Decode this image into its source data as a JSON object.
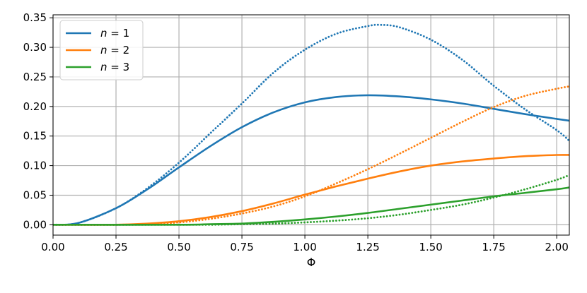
{
  "chart_data": {
    "type": "line",
    "title": "",
    "xlabel": "Φ",
    "ylabel": "",
    "xlim": [
      0.0,
      2.05
    ],
    "ylim": [
      -0.0175,
      0.355
    ],
    "grid": true,
    "legend_placement": "top-left",
    "x_ticks": [
      0.0,
      0.25,
      0.5,
      0.75,
      1.0,
      1.25,
      1.5,
      1.75,
      2.0
    ],
    "x_tick_labels": [
      "0.00",
      "0.25",
      "0.50",
      "0.75",
      "1.00",
      "1.25",
      "1.50",
      "1.75",
      "2.00"
    ],
    "y_ticks": [
      0.0,
      0.05,
      0.1,
      0.15,
      0.2,
      0.25,
      0.3,
      0.35
    ],
    "y_tick_labels": [
      "0.00",
      "0.05",
      "0.10",
      "0.15",
      "0.20",
      "0.25",
      "0.30",
      "0.35"
    ],
    "series": [
      {
        "name": "n = 1",
        "legend_n": "1",
        "color": "#1f77b4",
        "style": "solid",
        "x": [
          0.0,
          0.1,
          0.25,
          0.375,
          0.5,
          0.625,
          0.75,
          0.875,
          1.0,
          1.125,
          1.25,
          1.375,
          1.5,
          1.625,
          1.75,
          1.875,
          2.0,
          2.05
        ],
        "y": [
          0.0,
          0.003,
          0.028,
          0.06,
          0.097,
          0.133,
          0.165,
          0.19,
          0.207,
          0.216,
          0.219,
          0.217,
          0.212,
          0.205,
          0.196,
          0.187,
          0.179,
          0.176
        ]
      },
      {
        "name": "n = 1 (dotted)",
        "color": "#1f77b4",
        "style": "dotted",
        "x": [
          0.0,
          0.1,
          0.25,
          0.375,
          0.5,
          0.625,
          0.75,
          0.875,
          1.0,
          1.125,
          1.25,
          1.3,
          1.375,
          1.5,
          1.625,
          1.75,
          1.875,
          2.0,
          2.05
        ],
        "y": [
          0.0,
          0.003,
          0.028,
          0.062,
          0.105,
          0.155,
          0.205,
          0.257,
          0.296,
          0.323,
          0.336,
          0.338,
          0.334,
          0.313,
          0.279,
          0.235,
          0.195,
          0.16,
          0.142
        ]
      },
      {
        "name": "n = 2",
        "legend_n": "2",
        "color": "#ff7f0e",
        "style": "solid",
        "x": [
          0.0,
          0.25,
          0.375,
          0.5,
          0.625,
          0.75,
          0.875,
          1.0,
          1.125,
          1.25,
          1.375,
          1.5,
          1.625,
          1.75,
          1.875,
          2.0,
          2.05
        ],
        "y": [
          0.0,
          0.0,
          0.002,
          0.006,
          0.013,
          0.023,
          0.036,
          0.051,
          0.065,
          0.078,
          0.09,
          0.1,
          0.107,
          0.112,
          0.116,
          0.118,
          0.118
        ]
      },
      {
        "name": "n = 2 (dotted)",
        "color": "#ff7f0e",
        "style": "dotted",
        "x": [
          0.0,
          0.25,
          0.375,
          0.5,
          0.625,
          0.75,
          0.875,
          1.0,
          1.125,
          1.25,
          1.375,
          1.5,
          1.625,
          1.75,
          1.875,
          2.0,
          2.05
        ],
        "y": [
          0.0,
          0.0,
          0.001,
          0.004,
          0.01,
          0.019,
          0.031,
          0.048,
          0.07,
          0.094,
          0.12,
          0.147,
          0.174,
          0.199,
          0.218,
          0.23,
          0.234
        ]
      },
      {
        "name": "n = 3",
        "legend_n": "3",
        "color": "#2ca02c",
        "style": "solid",
        "x": [
          0.0,
          0.5,
          0.625,
          0.75,
          0.875,
          1.0,
          1.125,
          1.25,
          1.375,
          1.5,
          1.625,
          1.75,
          1.875,
          2.0,
          2.05
        ],
        "y": [
          0.0,
          0.0,
          0.001,
          0.002,
          0.005,
          0.009,
          0.014,
          0.02,
          0.027,
          0.034,
          0.041,
          0.048,
          0.054,
          0.06,
          0.063
        ]
      },
      {
        "name": "n = 3 (dotted)",
        "color": "#2ca02c",
        "style": "dotted",
        "x": [
          0.0,
          0.5,
          0.625,
          0.75,
          0.875,
          1.0,
          1.125,
          1.25,
          1.375,
          1.5,
          1.625,
          1.75,
          1.875,
          2.0,
          2.05
        ],
        "y": [
          0.0,
          0.0,
          0.0,
          0.001,
          0.002,
          0.004,
          0.007,
          0.011,
          0.017,
          0.025,
          0.034,
          0.046,
          0.06,
          0.076,
          0.084
        ]
      }
    ]
  }
}
